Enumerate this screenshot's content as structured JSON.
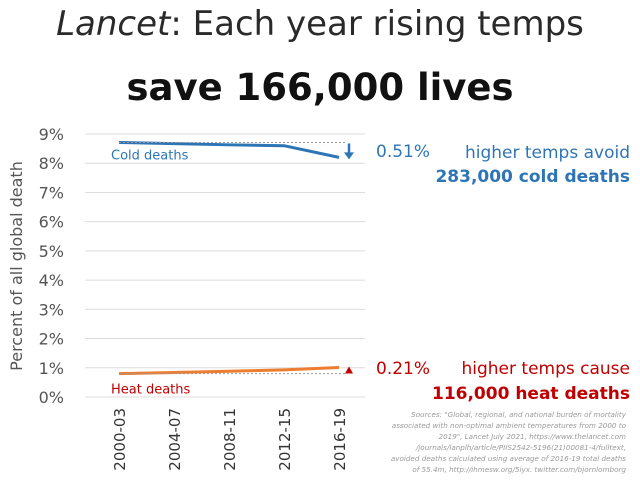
{
  "title": {
    "italic_part": "Lancet",
    "rest": ": Each year rising temps",
    "line2": "save 166,000 lives"
  },
  "chart_data": {
    "type": "line",
    "categories": [
      "2000-03",
      "2004-07",
      "2008-11",
      "2012-15",
      "2016-19"
    ],
    "ylabel": "Percent of all global death",
    "yticks": [
      "0%",
      "1%",
      "2%",
      "3%",
      "4%",
      "5%",
      "6%",
      "7%",
      "8%",
      "9%"
    ],
    "ylim": [
      0,
      9
    ],
    "series": [
      {
        "name": "Cold deaths",
        "color": "#2e75b6",
        "values": [
          8.71,
          8.67,
          8.63,
          8.6,
          8.2
        ]
      },
      {
        "name": "Heat deaths",
        "color": "#ed7d31",
        "values": [
          0.8,
          0.84,
          0.88,
          0.93,
          1.01
        ]
      }
    ],
    "annotations": {
      "cold_change": "0.51%",
      "cold_note_1": "higher temps avoid",
      "cold_note_2": "283,000 cold deaths",
      "heat_change": "0.21%",
      "heat_note_1": "higher temps cause",
      "heat_note_2": "116,000 heat deaths"
    },
    "colors": {
      "cold": "#2e75b6",
      "heat": "#ed7d31",
      "heat_text": "#c00000"
    },
    "sources": [
      "Sources: \"Global, regional, and national burden of mortality",
      "associated with non-optimal ambient temperatures from 2000 to",
      "2019\", Lancet July 2021, https://www.thelancet.com",
      "/journals/lanplh/article/PIIS2542-5196(21)00081-4/fulltext,",
      "avoided deaths calculated using average of 2016-19 total deaths",
      "of 55.4m, http://ihmesw.org/5iyx. twitter.com/bjornlomborg"
    ]
  }
}
